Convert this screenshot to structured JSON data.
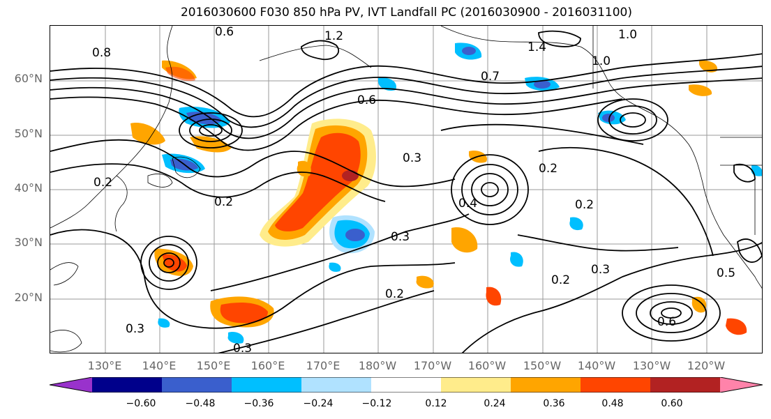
{
  "title": "2016030600 F030 850 hPa PV, IVT Landfall PC (2016030900 - 2016031100)",
  "lat_labels": [
    "60°N",
    "50°N",
    "40°N",
    "30°N",
    "20°N"
  ],
  "lon_labels": [
    "130°E",
    "140°E",
    "150°E",
    "160°E",
    "170°E",
    "180°W",
    "170°W",
    "160°W",
    "150°W",
    "140°W",
    "130°W",
    "120°W"
  ],
  "colorbar": {
    "ticks": [
      "−0.60",
      "−0.48",
      "−0.36",
      "−0.24",
      "−0.12",
      "0.12",
      "0.24",
      "0.36",
      "0.48",
      "0.60"
    ],
    "colors": [
      "#9932cc",
      "#00008b",
      "#3a5fcd",
      "#00bfff",
      "#b0e2ff",
      "#ffffff",
      "#ffec8b",
      "#ffa500",
      "#ff4500",
      "#b22222",
      "#ff83aa"
    ]
  },
  "contour_labels": [
    "0.6",
    "1.2",
    "1.0",
    "0.8",
    "1.4",
    "1.0",
    "0.7",
    "0.6",
    "0.3",
    "0.2",
    "0.2",
    "0.4",
    "0.3",
    "0.2",
    "0.6",
    "0.2",
    "0.3",
    "0.2",
    "0.5",
    "0.3",
    "0.2",
    "0.3"
  ]
}
